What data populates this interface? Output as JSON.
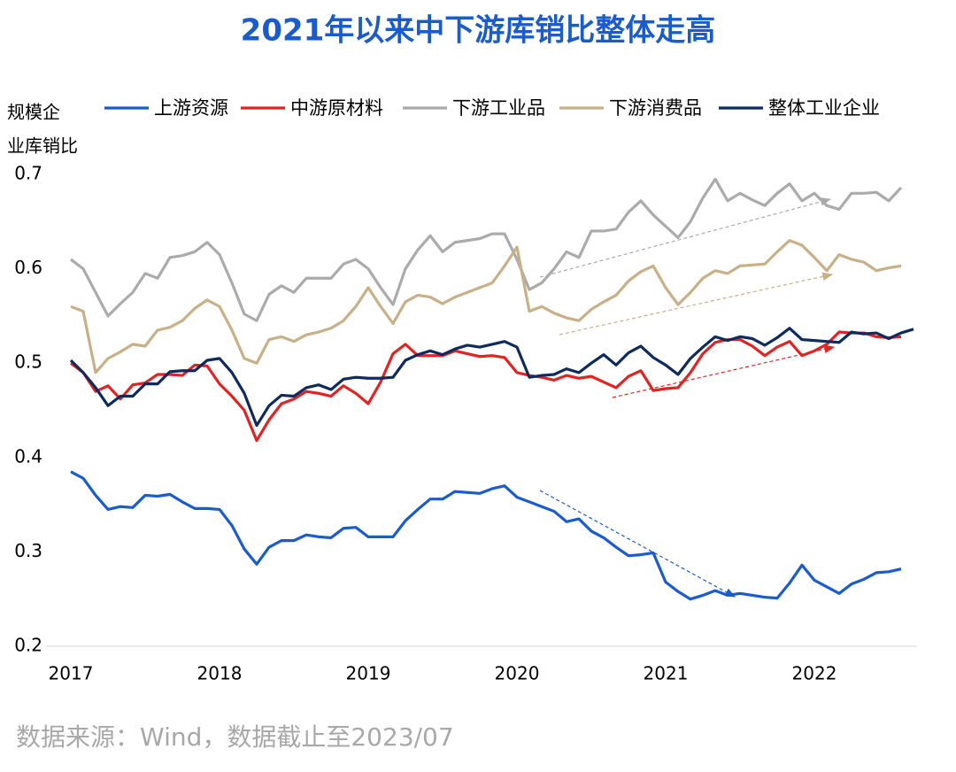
{
  "chart_data": {
    "type": "line",
    "title": "2021年以来中下游库销比整体走高",
    "ylabel": [
      "规模企",
      "业库销比"
    ],
    "source": "数据来源：Wind，数据截止至2023/07",
    "categories": [
      "2017",
      null,
      null,
      null,
      null,
      null,
      null,
      null,
      null,
      null,
      null,
      null,
      "2018",
      null,
      null,
      null,
      null,
      null,
      null,
      null,
      null,
      null,
      null,
      null,
      "2019",
      null,
      null,
      null,
      null,
      null,
      null,
      null,
      null,
      null,
      null,
      null,
      "2020",
      null,
      null,
      null,
      null,
      null,
      null,
      null,
      null,
      null,
      null,
      null,
      "2021",
      null,
      null,
      null,
      null,
      null,
      null,
      null,
      null,
      null,
      null,
      null,
      "2022",
      null,
      null,
      null,
      null,
      null,
      null,
      null,
      null
    ],
    "ylim": [
      0.2,
      0.7
    ],
    "yticks": [
      0.2,
      0.3,
      0.4,
      0.5,
      0.6,
      0.7
    ],
    "series": [
      {
        "name": "上游资源",
        "color": "#1a5ccc",
        "values": [
          0.385,
          0.378,
          0.36,
          0.345,
          0.348,
          0.347,
          0.36,
          0.359,
          0.361,
          0.353,
          0.346,
          0.346,
          0.345,
          0.328,
          0.303,
          0.287,
          0.305,
          0.312,
          0.312,
          0.318,
          0.316,
          0.315,
          0.325,
          0.326,
          0.316,
          0.316,
          0.316,
          0.333,
          0.345,
          0.356,
          0.356,
          0.364,
          0.363,
          0.362,
          0.367,
          0.37,
          0.358,
          0.353,
          0.348,
          0.343,
          0.332,
          0.335,
          0.322,
          0.315,
          0.305,
          0.296,
          0.297,
          0.299,
          0.268,
          0.258,
          0.25,
          0.254,
          0.259,
          0.254,
          0.256,
          0.254,
          0.252,
          0.251,
          0.267,
          0.286,
          0.27,
          0.263,
          0.256,
          0.266,
          0.271,
          0.278,
          0.279,
          0.282,
          null
        ]
      },
      {
        "name": "中游原材料",
        "color": "#e02424",
        "values": [
          0.5,
          0.49,
          0.47,
          0.476,
          0.462,
          0.477,
          0.479,
          0.488,
          0.488,
          0.487,
          0.498,
          0.497,
          0.478,
          0.465,
          0.45,
          0.418,
          0.44,
          0.457,
          0.462,
          0.47,
          0.468,
          0.465,
          0.476,
          0.468,
          0.457,
          0.48,
          0.51,
          0.52,
          0.508,
          0.508,
          0.508,
          0.513,
          0.51,
          0.507,
          0.508,
          0.506,
          0.49,
          0.487,
          0.485,
          0.482,
          0.487,
          0.484,
          0.486,
          0.48,
          0.474,
          0.486,
          0.492,
          0.471,
          0.473,
          0.474,
          0.49,
          0.51,
          0.522,
          0.525,
          0.525,
          0.518,
          0.508,
          0.517,
          0.523,
          0.508,
          0.513,
          0.52,
          0.533,
          0.532,
          0.532,
          0.528,
          0.527,
          0.528,
          null
        ]
      },
      {
        "name": "下游工业品",
        "color": "#ababab",
        "values": [
          0.61,
          0.6,
          0.575,
          0.55,
          0.563,
          0.575,
          0.595,
          0.59,
          0.612,
          0.614,
          0.618,
          0.628,
          0.615,
          0.585,
          0.552,
          0.545,
          0.573,
          0.582,
          0.575,
          0.59,
          0.59,
          0.59,
          0.605,
          0.61,
          0.6,
          0.58,
          0.562,
          0.6,
          0.62,
          0.635,
          0.618,
          0.628,
          0.63,
          0.632,
          0.637,
          0.637,
          0.61,
          0.578,
          0.585,
          0.6,
          0.618,
          0.612,
          0.64,
          0.64,
          0.642,
          0.66,
          0.672,
          0.657,
          0.645,
          0.633,
          0.65,
          0.675,
          0.695,
          0.672,
          0.68,
          0.673,
          0.667,
          0.68,
          0.69,
          0.672,
          0.68,
          0.667,
          0.663,
          0.68,
          0.68,
          0.681,
          0.672,
          0.686,
          null
        ]
      },
      {
        "name": "下游消费品",
        "color": "#c8b088",
        "values": [
          0.56,
          0.555,
          0.49,
          0.505,
          0.512,
          0.52,
          0.518,
          0.535,
          0.538,
          0.545,
          0.558,
          0.567,
          0.56,
          0.535,
          0.505,
          0.5,
          0.525,
          0.528,
          0.523,
          0.53,
          0.533,
          0.537,
          0.545,
          0.56,
          0.58,
          0.56,
          0.542,
          0.565,
          0.572,
          0.57,
          0.563,
          0.57,
          0.575,
          0.58,
          0.585,
          0.603,
          0.623,
          0.555,
          0.56,
          0.553,
          0.548,
          0.545,
          0.557,
          0.565,
          0.572,
          0.587,
          0.597,
          0.603,
          0.58,
          0.562,
          0.575,
          0.59,
          0.598,
          0.595,
          0.603,
          0.604,
          0.605,
          0.618,
          0.63,
          0.625,
          0.612,
          0.598,
          0.615,
          0.61,
          0.607,
          0.598,
          0.601,
          0.603,
          null
        ]
      },
      {
        "name": "整体工业企业",
        "color": "#0e2a5e",
        "values": [
          0.503,
          0.49,
          0.474,
          0.455,
          0.465,
          0.465,
          0.478,
          0.478,
          0.491,
          0.492,
          0.492,
          0.503,
          0.505,
          0.49,
          0.468,
          0.434,
          0.455,
          0.466,
          0.465,
          0.474,
          0.477,
          0.472,
          0.483,
          0.485,
          0.484,
          0.484,
          0.485,
          0.503,
          0.509,
          0.513,
          0.509,
          0.515,
          0.519,
          0.517,
          0.52,
          0.523,
          0.517,
          0.485,
          0.487,
          0.488,
          0.494,
          0.49,
          0.5,
          0.509,
          0.498,
          0.511,
          0.518,
          0.506,
          0.498,
          0.488,
          0.505,
          0.517,
          0.528,
          0.524,
          0.528,
          0.526,
          0.519,
          0.527,
          0.537,
          0.525,
          0.524,
          0.523,
          0.522,
          0.533,
          0.531,
          0.532,
          0.526,
          0.532,
          0.536
        ]
      }
    ]
  }
}
